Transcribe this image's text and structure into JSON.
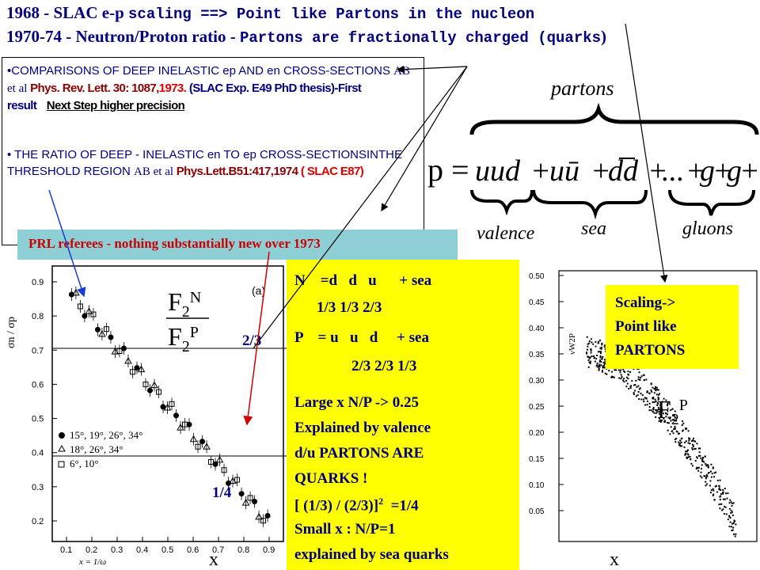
{
  "title": {
    "line1_year": "1968 - ",
    "line1_exp": "SLAC e-p ",
    "line1_rest": "scaling ==> Point like Partons in the nucleon",
    "line2_year": "1970-74 - ",
    "line2_exp": "Neutron/Proton ratio - ",
    "line2_rest": "Partons are fractionally charged (quarks",
    "line2_close": ")"
  },
  "references": {
    "item1": {
      "bullet": "•",
      "text": "COMPARISONS OF DEEP INELASTIC ep AND en CROSS-SECTIONS ",
      "authors": "AB et al ",
      "journal": "Phys. Rev. Lett. 30: 1087,",
      "year": "1973.",
      "exp": " (SLAC Exp. E49 PhD thesis)-First result",
      "next": "Next Step higher precision"
    },
    "item2": {
      "bullet": "•",
      "text": "THE RATIO OF DEEP - INELASTIC en TO ep CROSS-SECTIONSINTHE THRESHOLD REGION ",
      "authors": "AB et al ",
      "journal": "Phys.Lett.B51:417,1974",
      "exp": " ( SLAC E87)"
    }
  },
  "prl_note": "PRL  referees - nothing substantially new over 1973",
  "formula": {
    "p_label": "p =",
    "valence": "valence",
    "sea": "sea",
    "gluons": "gluons",
    "partons": "partons"
  },
  "left_plot": {
    "ylabel": "σn / σp",
    "panel": "(a)",
    "xlabel_axis": "x = 1/ω",
    "x_label": "x",
    "yticks": [
      "0.9",
      "0.8",
      "0.7",
      "0.6",
      "0.5",
      "0.4",
      "0.3",
      "0.2"
    ],
    "xticks": [
      "0.1",
      "0.2",
      "0.3",
      "0.4",
      "0.5",
      "0.6",
      "0.7",
      "0.8",
      "0.9"
    ],
    "legend": [
      "15°, 19°, 26°, 34°",
      "18°, 26°, 34°",
      "6°, 10°"
    ],
    "ratio_top": "F2N",
    "ratio_bottom": "F2P",
    "level_23": "2/3",
    "level_14": "1/4"
  },
  "yellow": {
    "n_line": "N    =d   d   u      + sea",
    "n_charges": "1/3 1/3 2/3",
    "p_line": "P    = u   u   d     + sea",
    "p_charges": "2/3 2/3 1/3",
    "large_x": "Large x N/P -> 0.25",
    "explained": "Explained by valence",
    "du": "d/u  PARTONS ARE",
    "quarks": "QUARKS !",
    "formula": "[ (1/3) / (2/3)]",
    "formula_sup": "2",
    "formula_end": "  =1/4",
    "small_x": "Small x :  N/P=1",
    "sea": "explained by sea quarks"
  },
  "right_plot": {
    "yticks": [
      "0.50",
      "0.45",
      "0.40",
      "0.35",
      "0.30",
      "0.25",
      "0.20",
      "0.15",
      "0.10",
      "0.05"
    ],
    "ylabel": "νW2P",
    "f2p": "F2P",
    "x_label": "x"
  },
  "scaling": {
    "line1": "Scaling->",
    "line2": "Point like",
    "line3": "PARTONS"
  }
}
